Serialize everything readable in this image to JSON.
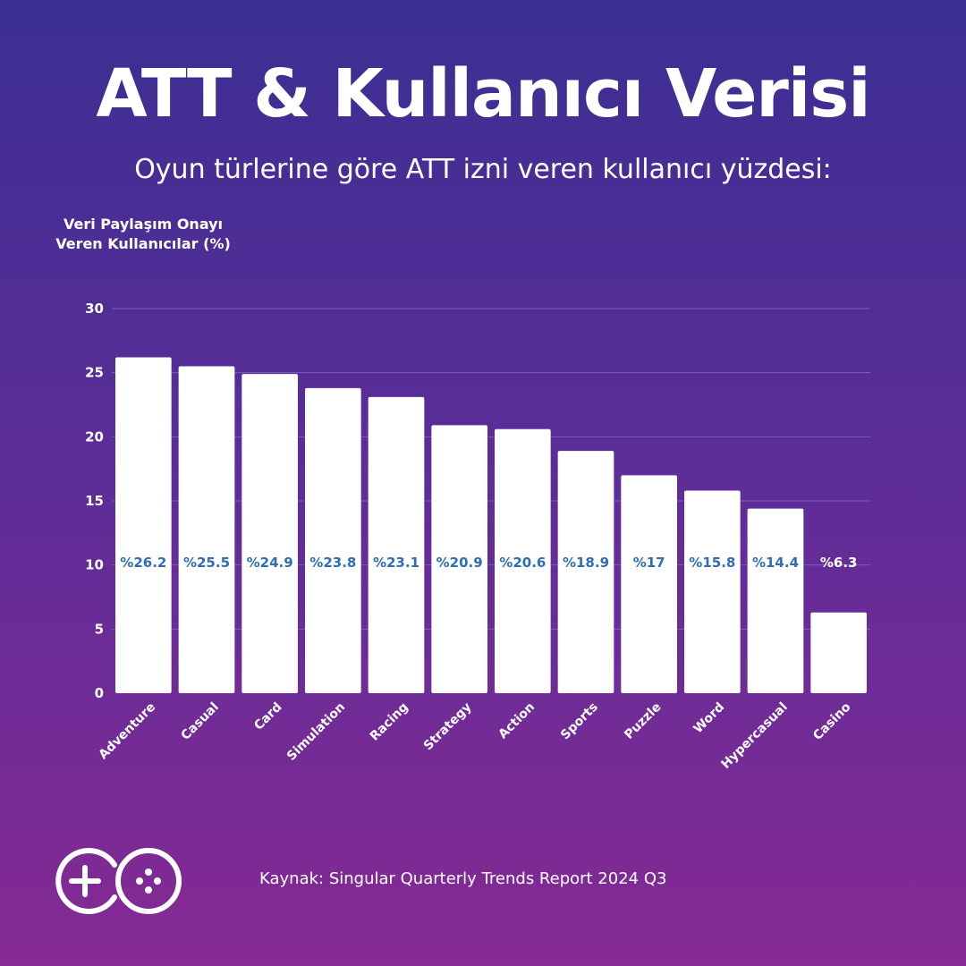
{
  "header": {
    "title": "ATT & Kullanıcı Verisi",
    "subtitle": "Oyun türlerine göre ATT izni veren kullanıcı yüzdesi:"
  },
  "chart_data": {
    "type": "bar",
    "ylabel": "Veri Paylaşım Onayı Veren Kullanıcılar (%)",
    "xlabel": "",
    "ylim": [
      0,
      30
    ],
    "yticks": [
      0,
      5,
      10,
      15,
      20,
      25,
      30
    ],
    "grid": true,
    "categories": [
      "Adventure",
      "Casual",
      "Card",
      "Simulation",
      "Racing",
      "Strategy",
      "Action",
      "Sports",
      "Puzzle",
      "Word",
      "Hypercasual",
      "Casino"
    ],
    "values": [
      26.2,
      25.5,
      24.9,
      23.8,
      23.1,
      20.9,
      20.6,
      18.9,
      17,
      15.8,
      14.4,
      6.3
    ],
    "data_labels": [
      "%26.2",
      "%25.5",
      "%24.9",
      "%23.8",
      "%23.1",
      "%20.9",
      "%20.6",
      "%18.9",
      "%17",
      "%15.8",
      "%14.4",
      "%6.3"
    ],
    "colors": {
      "bar": "#ffffff",
      "label_inside": "#2f6db5",
      "label_outside": "#ffffff",
      "grid": "#7a5cc0",
      "tick": "#ffffff"
    }
  },
  "footer": {
    "source": "Kaynak: Singular Quarterly Trends Report 2024 Q3",
    "logo_icon": "game-controller-logo-icon"
  }
}
